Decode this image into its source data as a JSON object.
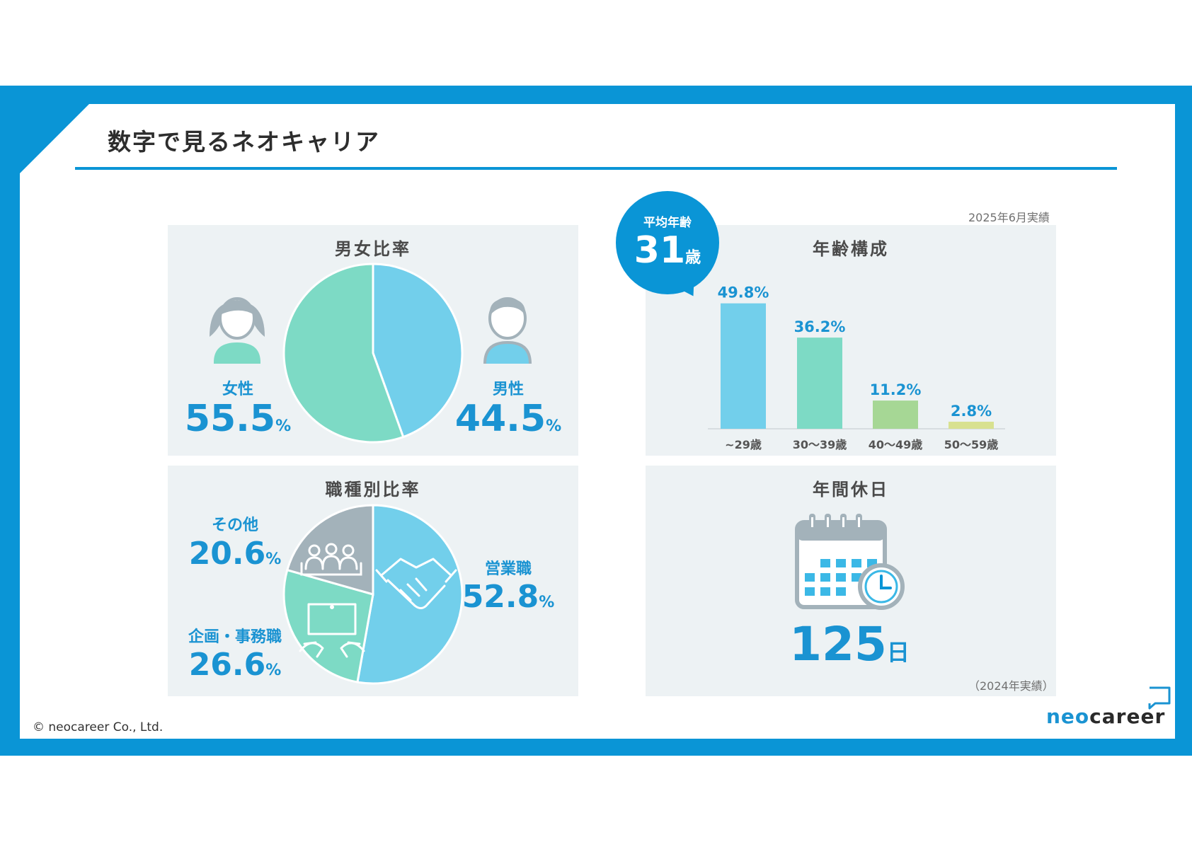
{
  "title": "数字で見るネオキャリア",
  "gender": {
    "title": "男女比率",
    "female": {
      "label": "女性",
      "value": "55.5",
      "unit": "%"
    },
    "male": {
      "label": "男性",
      "value": "44.5",
      "unit": "%"
    }
  },
  "age": {
    "title": "年齢構成",
    "note": "2025年6月実績",
    "avg_label": "平均年齢",
    "avg_value": "31",
    "avg_unit": "歳"
  },
  "jobs": {
    "title": "職種別比率",
    "sales": {
      "label": "営業職",
      "value": "52.8",
      "unit": "%"
    },
    "planning": {
      "label": "企画・事務職",
      "value": "26.6",
      "unit": "%"
    },
    "other": {
      "label": "その他",
      "value": "20.6",
      "unit": "%"
    }
  },
  "holidays": {
    "title": "年間休日",
    "value": "125",
    "unit": "日",
    "note": "（2024年実績）"
  },
  "footer": {
    "copyright": "© neocareer Co., Ltd.",
    "logo_a": "neo",
    "logo_b": "career"
  },
  "colors": {
    "brand": "#0a95d6",
    "light_blue": "#72cfeb",
    "mint": "#7ddac5",
    "gray": "#a3b2ba",
    "green": "#a6d795",
    "yellow": "#d8e190",
    "panel": "#edf2f4"
  },
  "chart_data": [
    {
      "type": "pie",
      "title": "男女比率",
      "categories": [
        "女性",
        "男性"
      ],
      "values": [
        55.5,
        44.5
      ]
    },
    {
      "type": "bar",
      "title": "年齢構成",
      "categories": [
        "~29歳",
        "30〜39歳",
        "40〜49歳",
        "50〜59歳"
      ],
      "values": [
        49.8,
        36.2,
        11.2,
        2.8
      ],
      "value_labels": [
        "49.8%",
        "36.2%",
        "11.2%",
        "2.8%"
      ],
      "ylim": [
        0,
        50
      ]
    },
    {
      "type": "pie",
      "title": "職種別比率",
      "categories": [
        "営業職",
        "企画・事務職",
        "その他"
      ],
      "values": [
        52.8,
        26.6,
        20.6
      ]
    }
  ]
}
